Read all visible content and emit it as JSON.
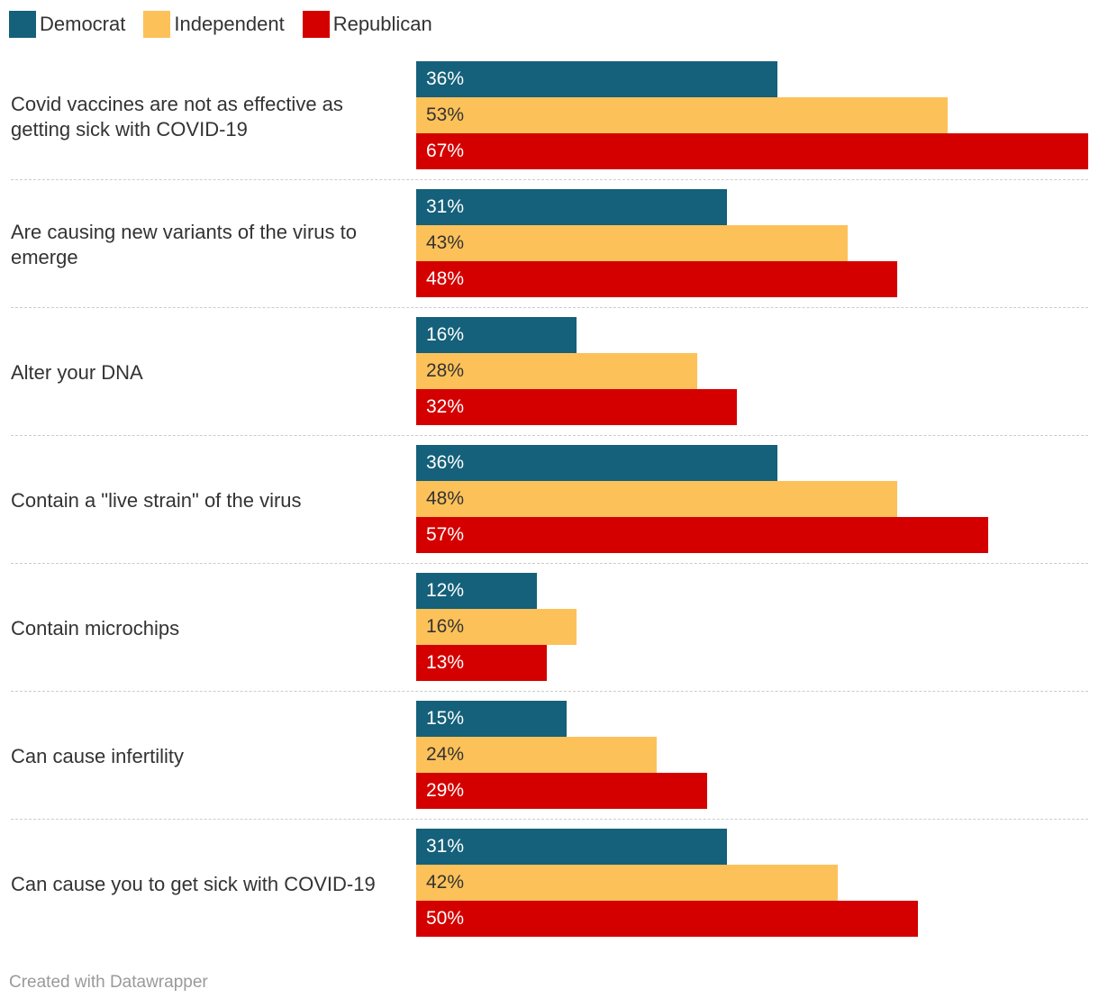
{
  "chart_data": {
    "type": "bar",
    "orientation": "horizontal",
    "grouped": true,
    "categories": [
      "Covid vaccines are not as effective as getting sick with COVID-19",
      "Are causing new variants of the virus to emerge",
      "Alter your DNA",
      "Contain a \"live strain\" of the virus",
      "Contain microchips",
      "Can cause infertility",
      "Can cause you to get sick with COVID-19"
    ],
    "series": [
      {
        "name": "Democrat",
        "color": "#15607a",
        "text_color": "#ffffff",
        "values": [
          36,
          31,
          16,
          36,
          12,
          15,
          31
        ]
      },
      {
        "name": "Independent",
        "color": "#fdc15a",
        "text_color": "#333333",
        "values": [
          53,
          43,
          28,
          48,
          16,
          24,
          42
        ]
      },
      {
        "name": "Republican",
        "color": "#d40000",
        "text_color": "#ffffff",
        "values": [
          67,
          48,
          32,
          57,
          13,
          29,
          50
        ]
      }
    ],
    "value_suffix": "%",
    "xlim": [
      0,
      67
    ],
    "legend_position": "top-left"
  },
  "footer": {
    "text": "Created with Datawrapper"
  }
}
